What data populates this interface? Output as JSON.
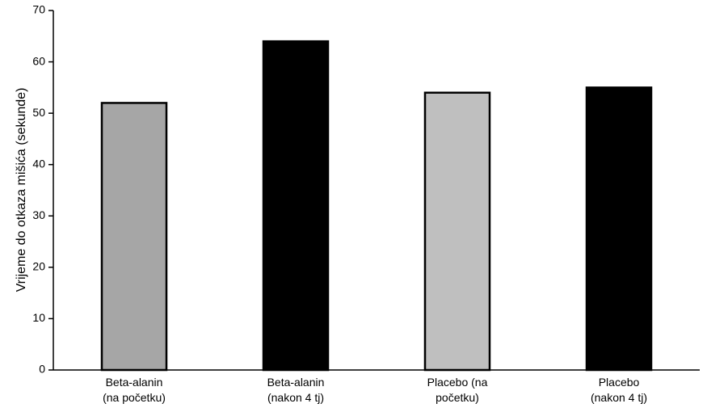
{
  "chart_data": {
    "type": "bar",
    "y_label": "Vrijeme do otkaza mišića (sekunde)",
    "categories": [
      [
        "Beta-alanin",
        "(na početku)"
      ],
      [
        "Beta-alanin",
        "(nakon 4 tj)"
      ],
      [
        "Placebo (na",
        "početku)"
      ],
      [
        "Placebo",
        "(nakon 4 tj)"
      ]
    ],
    "values": [
      52,
      64,
      54,
      55
    ],
    "colors": [
      "#a6a6a6",
      "#000000",
      "#bfbfbf",
      "#000000"
    ],
    "ylim": [
      0,
      70
    ],
    "yticks": [
      0,
      10,
      20,
      30,
      40,
      50,
      60,
      70
    ],
    "grid": false
  }
}
